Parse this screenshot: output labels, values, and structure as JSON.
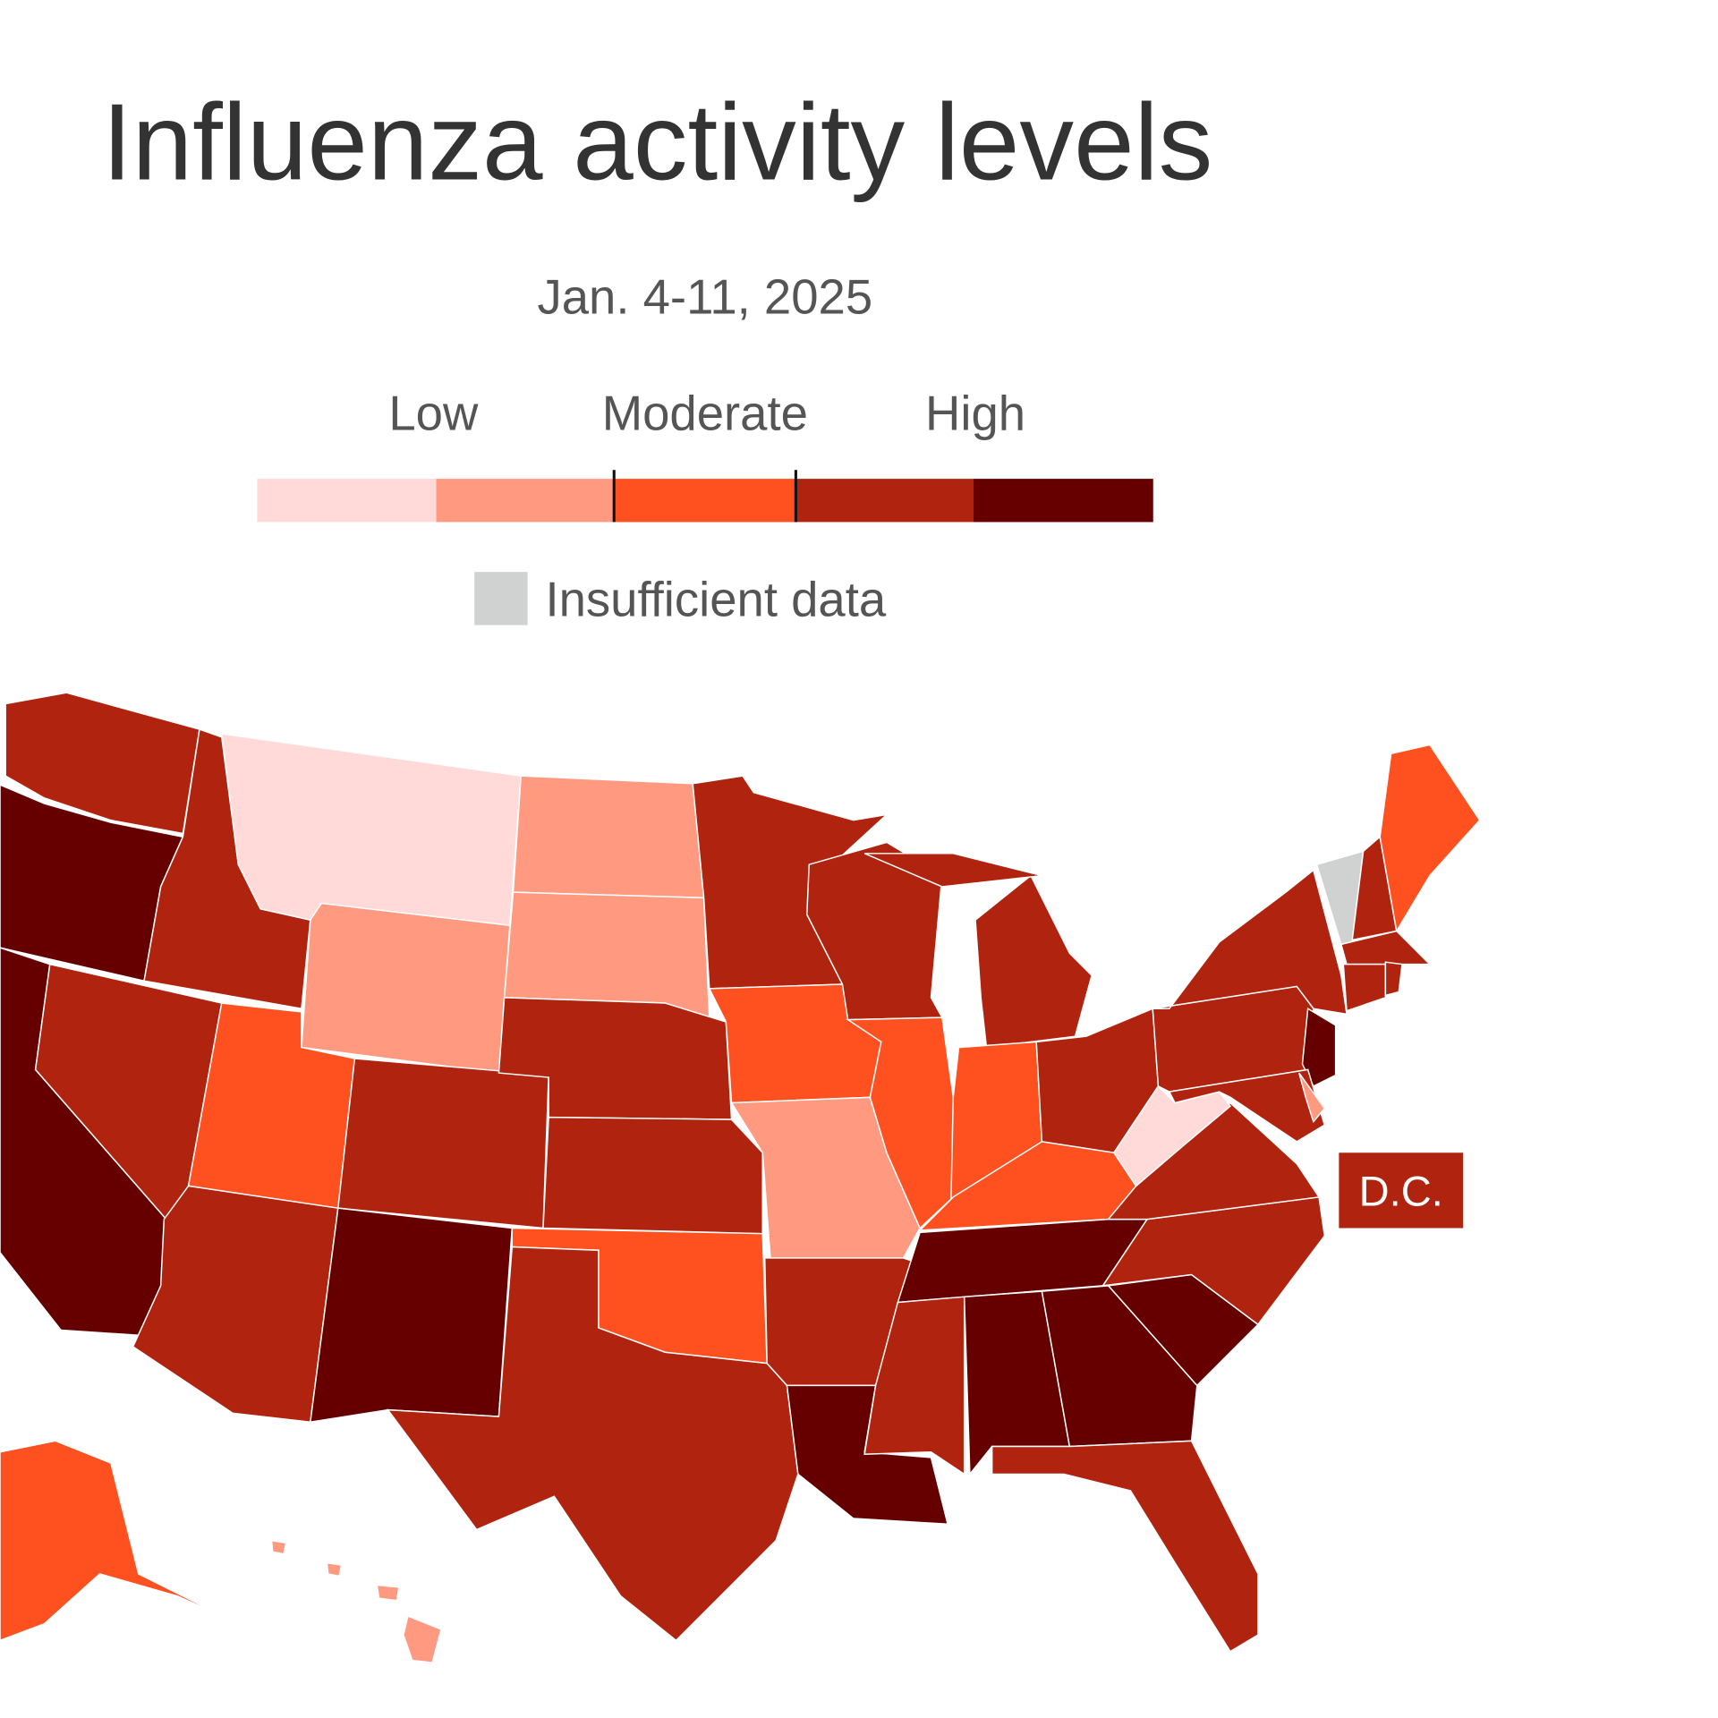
{
  "title": "Influenza activity levels",
  "subtitle": "Jan. 4-11, 2025",
  "legend": {
    "labels": [
      "Low",
      "Moderate",
      "High"
    ],
    "scale": [
      {
        "level": "minimal",
        "color": "#ffdad9"
      },
      {
        "level": "low",
        "color": "#ff9a80"
      },
      {
        "level": "moderate",
        "color": "#ff5020"
      },
      {
        "level": "high",
        "color": "#b0240f"
      },
      {
        "level": "very-high",
        "color": "#660000"
      }
    ],
    "insufficient": {
      "label": "Insufficient data",
      "color": "#d0d2d1"
    }
  },
  "dc_label": "D.C.",
  "dc_level": "high",
  "states": [
    {
      "code": "WA",
      "level": "high"
    },
    {
      "code": "OR",
      "level": "very-high"
    },
    {
      "code": "CA",
      "level": "very-high"
    },
    {
      "code": "NV",
      "level": "high"
    },
    {
      "code": "ID",
      "level": "high"
    },
    {
      "code": "MT",
      "level": "minimal"
    },
    {
      "code": "WY",
      "level": "low"
    },
    {
      "code": "UT",
      "level": "moderate"
    },
    {
      "code": "CO",
      "level": "high"
    },
    {
      "code": "AZ",
      "level": "high"
    },
    {
      "code": "NM",
      "level": "very-high"
    },
    {
      "code": "ND",
      "level": "low"
    },
    {
      "code": "SD",
      "level": "low"
    },
    {
      "code": "NE",
      "level": "high"
    },
    {
      "code": "KS",
      "level": "high"
    },
    {
      "code": "OK",
      "level": "moderate"
    },
    {
      "code": "TX",
      "level": "high"
    },
    {
      "code": "MN",
      "level": "high"
    },
    {
      "code": "IA",
      "level": "moderate"
    },
    {
      "code": "MO",
      "level": "low"
    },
    {
      "code": "AR",
      "level": "high"
    },
    {
      "code": "LA",
      "level": "very-high"
    },
    {
      "code": "WI",
      "level": "high"
    },
    {
      "code": "IL",
      "level": "moderate"
    },
    {
      "code": "MI",
      "level": "high"
    },
    {
      "code": "IN",
      "level": "moderate"
    },
    {
      "code": "OH",
      "level": "high"
    },
    {
      "code": "KY",
      "level": "moderate"
    },
    {
      "code": "TN",
      "level": "very-high"
    },
    {
      "code": "MS",
      "level": "high"
    },
    {
      "code": "AL",
      "level": "very-high"
    },
    {
      "code": "GA",
      "level": "very-high"
    },
    {
      "code": "SC",
      "level": "very-high"
    },
    {
      "code": "NC",
      "level": "high"
    },
    {
      "code": "VA",
      "level": "high"
    },
    {
      "code": "WV",
      "level": "minimal"
    },
    {
      "code": "PA",
      "level": "high"
    },
    {
      "code": "NY",
      "level": "high"
    },
    {
      "code": "NJ",
      "level": "very-high"
    },
    {
      "code": "MD",
      "level": "high"
    },
    {
      "code": "DE",
      "level": "low"
    },
    {
      "code": "VT",
      "level": "insufficient"
    },
    {
      "code": "NH",
      "level": "high"
    },
    {
      "code": "ME",
      "level": "moderate"
    },
    {
      "code": "MA",
      "level": "high"
    },
    {
      "code": "CT",
      "level": "high"
    },
    {
      "code": "RI",
      "level": "high"
    },
    {
      "code": "FL",
      "level": "high"
    },
    {
      "code": "AK",
      "level": "moderate"
    },
    {
      "code": "HI",
      "level": "low"
    }
  ]
}
